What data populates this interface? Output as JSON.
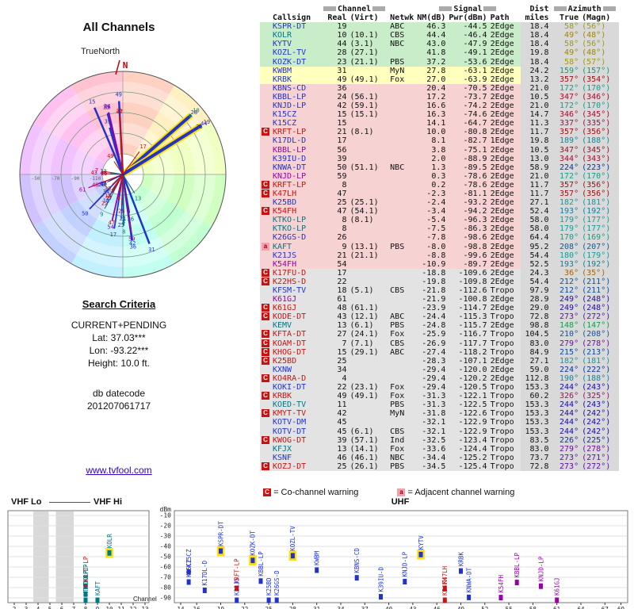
{
  "page_title": "All Channels",
  "polar": {
    "north_axis_label": "TrueNorth",
    "north_label": "N"
  },
  "search": {
    "heading": "Search Criteria",
    "mode": "CURRENT+PENDING",
    "lat": "Lat: 37.03***",
    "lon": "Lon: -93.22***",
    "height": "Height: 10.0 ft.",
    "datecode_label": "db datecode",
    "datecode": "201207061717"
  },
  "link": "www.tvfool.com",
  "legend": {
    "c": "C",
    "c_text": "= Co-channel warning",
    "a": "a",
    "a_text": "= Adjacent channel warning"
  },
  "table": {
    "headers": {
      "channel_group": "Channel",
      "signal_group": "Signal",
      "dist_group": "Dist",
      "azimuth_group": "Azimuth",
      "callsign": "Callsign",
      "real": "Real",
      "virt": "(Virt)",
      "netwk": "Netwk",
      "nm": "NM(dB)",
      "pwr": "Pwr(dBm)",
      "path": "Path",
      "miles": "miles",
      "true": "True",
      "magn": "(Magn)"
    }
  },
  "spectrum": {
    "vhf_lo": "VHF Lo",
    "vhf_hi": "VHF Hi",
    "uhf": "UHF",
    "dbm": "dBm",
    "channel": "Channel",
    "y_ticks": [
      -10,
      -20,
      -30,
      -40,
      -50,
      -60,
      -70,
      -80,
      -90
    ],
    "vhf_ticks": [
      2,
      3,
      4,
      5,
      6,
      7,
      8,
      9,
      10,
      11,
      12,
      13
    ],
    "uhf_ticks": [
      14,
      16,
      19,
      22,
      25,
      28,
      31,
      34,
      37,
      40,
      43,
      46,
      49,
      52,
      55,
      58,
      61,
      64,
      67,
      69
    ]
  },
  "colors": {
    "band_vhf_lo": "#994400",
    "band_vhf_hi": "#007788",
    "band_uhf": "#2233cc",
    "band_out_of_core": "#9900aa",
    "warning_c": "#cc1111",
    "warning_a": "#dd4477",
    "highlight": "#ffe000",
    "tier_green": "#c9ecc9",
    "tier_yellow": "#ffffbe",
    "tier_pink": "#f6d2d2",
    "tier_gray": "#e3e3e3",
    "col_gray": "#d9d9d9"
  },
  "chart_data": {
    "type": "table",
    "title": "All Channels",
    "row_fields": [
      "warning",
      "callsign",
      "real",
      "virt",
      "netwk",
      "nm_db",
      "pwr_dbm",
      "path",
      "dist_miles",
      "az_true",
      "az_magn",
      "tier"
    ],
    "polar": {
      "type": "radial",
      "angle_field": "az_true",
      "length_field": "pwr_dbm",
      "length_range": [
        -130,
        -40
      ],
      "ring_values": [
        -110,
        -90,
        -70,
        -50
      ]
    },
    "spectrum": {
      "type": "bar",
      "x_field": "real",
      "y_field": "pwr_dbm",
      "ylim": [
        -95,
        -10
      ],
      "visible_threshold": -101
    },
    "rows": [
      [
        "",
        "KSPR-DT",
        19,
        null,
        "ABC",
        46.3,
        -44.5,
        "2Edge",
        18.4,
        58,
        56,
        "g"
      ],
      [
        "",
        "KOLR",
        10,
        "10.1",
        "CBS",
        44.4,
        -46.4,
        "2Edge",
        18.4,
        49,
        48,
        "g"
      ],
      [
        "",
        "KYTV",
        44,
        "3.1",
        "NBC",
        43.0,
        -47.9,
        "2Edge",
        18.4,
        58,
        56,
        "g"
      ],
      [
        "",
        "KOZL-TV",
        28,
        "27.1",
        "",
        41.8,
        -49.1,
        "2Edge",
        19.8,
        49,
        48,
        "g"
      ],
      [
        "",
        "KOZK-DT",
        23,
        "21.1",
        "PBS",
        37.2,
        -53.6,
        "2Edge",
        18.4,
        58,
        57,
        "g"
      ],
      [
        "",
        "KWBM",
        31,
        null,
        "MyN",
        27.8,
        -63.1,
        "2Edge",
        24.2,
        159,
        157,
        "y"
      ],
      [
        "",
        "KRBK",
        49,
        "49.1",
        "Fox",
        27.0,
        -63.9,
        "2Edge",
        13.2,
        357,
        354,
        "y"
      ],
      [
        "",
        "KBNS-CD",
        36,
        null,
        "",
        20.4,
        -70.5,
        "2Edge",
        21.0,
        172,
        170,
        "p"
      ],
      [
        "",
        "KBBL-LP",
        24,
        "56.1",
        "",
        17.2,
        -73.7,
        "2Edge",
        10.5,
        347,
        346,
        "p"
      ],
      [
        "",
        "KNJD-LP",
        42,
        "59.1",
        "",
        16.6,
        -74.2,
        "2Edge",
        21.0,
        172,
        170,
        "p"
      ],
      [
        "",
        "K15CZ",
        15,
        "15.1",
        "",
        16.3,
        -74.6,
        "2Edge",
        14.7,
        346,
        345,
        "p"
      ],
      [
        "",
        "K15CZ",
        15,
        null,
        "",
        14.1,
        -64.7,
        "2Edge",
        11.3,
        337,
        335,
        "p"
      ],
      [
        "C",
        "KRFT-LP",
        21,
        "8.1",
        "",
        10.0,
        -80.8,
        "2Edge",
        11.7,
        357,
        356,
        "p"
      ],
      [
        "",
        "K17DL-D",
        17,
        null,
        "",
        8.1,
        -82.7,
        "1Edge",
        19.8,
        189,
        188,
        "p"
      ],
      [
        "",
        "KBBL-LP",
        56,
        null,
        "",
        3.8,
        -75.1,
        "2Edge",
        10.5,
        347,
        345,
        "p"
      ],
      [
        "",
        "K39IU-D",
        39,
        null,
        "",
        2.0,
        -88.9,
        "2Edge",
        13.0,
        344,
        343,
        "p"
      ],
      [
        "",
        "KNWA-DT",
        50,
        "51.1",
        "NBC",
        1.3,
        -89.5,
        "2Edge",
        58.9,
        224,
        223,
        "p"
      ],
      [
        "",
        "KNJD-LP",
        59,
        null,
        "",
        0.3,
        -78.6,
        "2Edge",
        21.0,
        172,
        170,
        "p"
      ],
      [
        "C",
        "KRFT-LP",
        8,
        null,
        "",
        0.2,
        -78.6,
        "2Edge",
        11.7,
        357,
        356,
        "p"
      ],
      [
        "C",
        "K47LH",
        47,
        null,
        "",
        -2.3,
        -81.1,
        "2Edge",
        11.7,
        357,
        356,
        "p"
      ],
      [
        "",
        "K25BD",
        25,
        "25.1",
        "",
        -2.4,
        -93.2,
        "2Edge",
        27.1,
        182,
        181,
        "p"
      ],
      [
        "C",
        "K54FH",
        47,
        "54.1",
        "",
        -3.4,
        -94.2,
        "2Edge",
        52.4,
        193,
        192,
        "p"
      ],
      [
        "",
        "KTKO-LP",
        8,
        "8.1",
        "",
        -5.4,
        -96.3,
        "2Edge",
        58.0,
        179,
        177,
        "p"
      ],
      [
        "",
        "KTKO-LP",
        8,
        null,
        "",
        -7.5,
        -86.3,
        "2Edge",
        58.0,
        179,
        177,
        "p"
      ],
      [
        "",
        "K26GS-D",
        26,
        null,
        "",
        -7.8,
        -98.6,
        "2Edge",
        64.4,
        170,
        169,
        "p"
      ],
      [
        "A",
        "KAFT",
        9,
        "13.1",
        "PBS",
        -8.0,
        -98.8,
        "2Edge",
        95.2,
        208,
        207,
        "p"
      ],
      [
        "",
        "K21JS",
        21,
        "21.1",
        "",
        -8.8,
        -99.6,
        "2Edge",
        54.4,
        180,
        179,
        "p"
      ],
      [
        "",
        "K54FH",
        54,
        null,
        "",
        -10.9,
        -89.7,
        "2Edge",
        52.5,
        193,
        192,
        "p"
      ],
      [
        "C",
        "K17FU-D",
        17,
        null,
        "",
        -18.8,
        -109.6,
        "2Edge",
        24.3,
        36,
        35,
        "x"
      ],
      [
        "C",
        "K22HS-D",
        22,
        null,
        "",
        -19.8,
        -109.8,
        "2Edge",
        54.4,
        212,
        211,
        "x"
      ],
      [
        "",
        "KFSM-TV",
        18,
        "5.1",
        "CBS",
        -21.8,
        -112.6,
        "Tropo",
        97.9,
        212,
        211,
        "x"
      ],
      [
        "",
        "K61GJ",
        61,
        null,
        "",
        -21.9,
        -100.8,
        "2Edge",
        28.9,
        249,
        248,
        "x"
      ],
      [
        "C",
        "K61GJ",
        48,
        "61.1",
        "",
        -23.9,
        -114.7,
        "2Edge",
        29.0,
        249,
        248,
        "x"
      ],
      [
        "C",
        "KODE-DT",
        43,
        "12.1",
        "ABC",
        -24.4,
        -115.3,
        "Tropo",
        72.8,
        273,
        272,
        "x"
      ],
      [
        "",
        "KEMV",
        13,
        "6.1",
        "PBS",
        -24.8,
        -115.7,
        "2Edge",
        98.8,
        148,
        147,
        "x"
      ],
      [
        "C",
        "KFTA-DT",
        27,
        "24.1",
        "Fox",
        -25.9,
        -116.7,
        "Tropo",
        104.5,
        210,
        208,
        "x"
      ],
      [
        "C",
        "KOAM-DT",
        7,
        "7.1",
        "CBS",
        -26.9,
        -117.7,
        "Tropo",
        83.0,
        279,
        278,
        "x"
      ],
      [
        "C",
        "KHOG-DT",
        15,
        "29.1",
        "ABC",
        -27.4,
        -118.2,
        "Tropo",
        84.9,
        215,
        213,
        "x"
      ],
      [
        "C",
        "K25BD",
        25,
        null,
        "",
        -28.3,
        -107.1,
        "2Edge",
        27.1,
        182,
        181,
        "x"
      ],
      [
        "",
        "KXNW",
        34,
        null,
        "",
        -29.4,
        -120.0,
        "2Edge",
        59.0,
        224,
        222,
        "x"
      ],
      [
        "C",
        "KO4RA-D",
        4,
        null,
        "",
        -29.4,
        -120.2,
        "2Edge",
        112.8,
        190,
        188,
        "x"
      ],
      [
        "",
        "KOKI-DT",
        22,
        "23.1",
        "Fox",
        -29.4,
        -120.5,
        "Tropo",
        153.3,
        244,
        243,
        "x"
      ],
      [
        "C",
        "KRBK",
        49,
        "49.1",
        "Fox",
        -31.3,
        -122.1,
        "Tropo",
        60.2,
        326,
        325,
        "x"
      ],
      [
        "",
        "KOED-TV",
        11,
        null,
        "PBS",
        -31.3,
        -122.5,
        "Tropo",
        153.3,
        244,
        243,
        "x"
      ],
      [
        "C",
        "KMYT-TV",
        42,
        null,
        "MyN",
        -31.8,
        -122.6,
        "Tropo",
        153.3,
        244,
        242,
        "x"
      ],
      [
        "",
        "KOTV-DM",
        45,
        null,
        "",
        -32.1,
        -122.9,
        "Tropo",
        153.3,
        244,
        242,
        "x"
      ],
      [
        "",
        "KOTV-DT",
        45,
        "6.1",
        "CBS",
        -32.1,
        -122.9,
        "Tropo",
        153.3,
        244,
        242,
        "x"
      ],
      [
        "C",
        "KWOG-DT",
        39,
        "57.1",
        "Ind",
        -32.5,
        -123.4,
        "Tropo",
        83.5,
        226,
        225,
        "x"
      ],
      [
        "",
        "KFJX",
        13,
        "14.1",
        "Fox",
        -33.6,
        -124.4,
        "Tropo",
        83.0,
        279,
        278,
        "x"
      ],
      [
        "",
        "KSNF",
        46,
        "46.1",
        "NBC",
        -34.4,
        -125.2,
        "Tropo",
        73.7,
        273,
        271,
        "x"
      ],
      [
        "C",
        "KOZJ-DT",
        25,
        "26.1",
        "PBS",
        -34.5,
        -125.4,
        "Tropo",
        72.8,
        273,
        272,
        "x"
      ]
    ]
  }
}
